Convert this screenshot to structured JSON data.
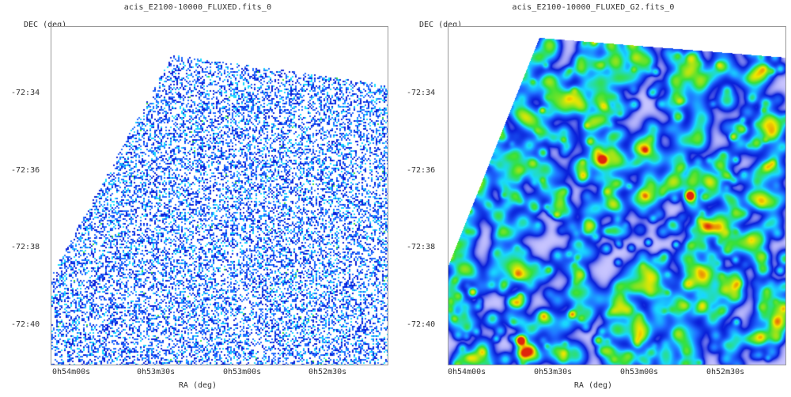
{
  "panels": [
    {
      "title": "acis_E2100-10000_FLUXED.fits_0",
      "ylabel": "DEC (deg)",
      "xlabel": "RA (deg)",
      "yticks": [
        "-72:34",
        "-72:36",
        "-72:38",
        "-72:40"
      ],
      "xticks": [
        "0h54m00s",
        "0h53m30s",
        "0h53m00s",
        "0h52m30s"
      ],
      "image": "sparse-binned-xray-counts"
    },
    {
      "title": "acis_E2100-10000_FLUXED_G2.fits_0",
      "ylabel": "DEC (deg)",
      "xlabel": "RA (deg)",
      "yticks": [
        "-72:34",
        "-72:36",
        "-72:38",
        "-72:40"
      ],
      "xticks": [
        "0h54m00s",
        "0h53m30s",
        "0h53m00s",
        "0h52m30s"
      ],
      "image": "gaussian-smoothed-xray-flux"
    }
  ],
  "colors": {
    "background": "#ffffff",
    "dark_blue": "#0a1fd8",
    "blue": "#1f6bff",
    "cyan": "#19d9ff",
    "green": "#36e03a",
    "yellow": "#f2e600",
    "red": "#e0240c",
    "lavender": "#c9c6ff"
  }
}
